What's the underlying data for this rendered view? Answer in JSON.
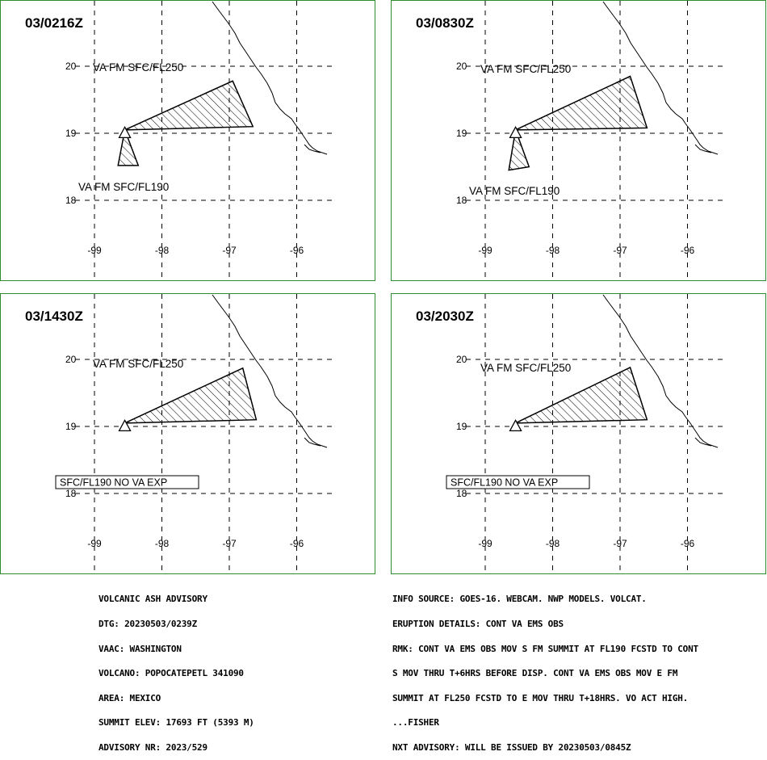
{
  "panels": [
    {
      "time": "03/0216Z",
      "polygons": [
        {
          "label": "VA FM SFC/FL250",
          "points": [
            [
              -98.55,
              19.05
            ],
            [
              -96.95,
              19.78
            ],
            [
              -96.65,
              19.1
            ]
          ]
        },
        {
          "label": "VA FM SFC/FL190",
          "points": [
            [
              -98.55,
              19.05
            ],
            [
              -98.65,
              18.52
            ],
            [
              -98.35,
              18.52
            ]
          ]
        }
      ],
      "no_va_box": ""
    },
    {
      "time": "03/0830Z",
      "polygons": [
        {
          "label": "VA FM SFC/FL250",
          "points": [
            [
              -98.55,
              19.05
            ],
            [
              -96.85,
              19.85
            ],
            [
              -96.6,
              19.08
            ]
          ]
        },
        {
          "label": "VA FM SFC/FL190",
          "points": [
            [
              -98.55,
              19.05
            ],
            [
              -98.65,
              18.45
            ],
            [
              -98.35,
              18.5
            ]
          ]
        }
      ],
      "no_va_box": ""
    },
    {
      "time": "03/1430Z",
      "polygons": [
        {
          "label": "VA FM SFC/FL250",
          "points": [
            [
              -98.55,
              19.05
            ],
            [
              -96.8,
              19.87
            ],
            [
              -96.6,
              19.1
            ]
          ]
        }
      ],
      "no_va_box": "SFC/FL190 NO VA EXP"
    },
    {
      "time": "03/2030Z",
      "polygons": [
        {
          "label": "VA FM SFC/FL250",
          "points": [
            [
              -98.55,
              19.05
            ],
            [
              -96.85,
              19.88
            ],
            [
              -96.6,
              19.1
            ]
          ]
        }
      ],
      "no_va_box": "SFC/FL190 NO VA EXP"
    }
  ],
  "map": {
    "lon_ticks": [
      "-99",
      "-98",
      "-97",
      "-96"
    ],
    "lat_ticks": [
      "20",
      "19",
      "18"
    ],
    "volcano_symbol": "triangle-volcano-icon"
  },
  "colors": {
    "panel_border": "#2e8b2e",
    "polygon": "#000000",
    "grid": "#000000"
  },
  "advisory_left": [
    "VOLCANIC ASH ADVISORY",
    "DTG: 20230503/0239Z",
    "VAAC: WASHINGTON",
    "VOLCANO: POPOCATEPETL 341090",
    "AREA: MEXICO",
    "SUMMIT ELEV: 17693 FT (5393 M)",
    "ADVISORY NR: 2023/529"
  ],
  "advisory_right": [
    "INFO SOURCE: GOES-16. WEBCAM. NWP MODELS. VOLCAT.",
    "ERUPTION DETAILS: CONT VA EMS OBS",
    "RMK: CONT VA EMS OBS MOV S FM SUMMIT AT FL190 FCSTD TO CONT",
    "S MOV THRU T+6HRS BEFORE DISP. CONT VA EMS OBS MOV E FM",
    "SUMMIT AT FL250 FCSTD TO E MOV THRU T+18HRS. VO ACT HIGH.",
    "...FISHER",
    "NXT ADVISORY: WILL BE ISSUED BY 20230503/0845Z"
  ]
}
